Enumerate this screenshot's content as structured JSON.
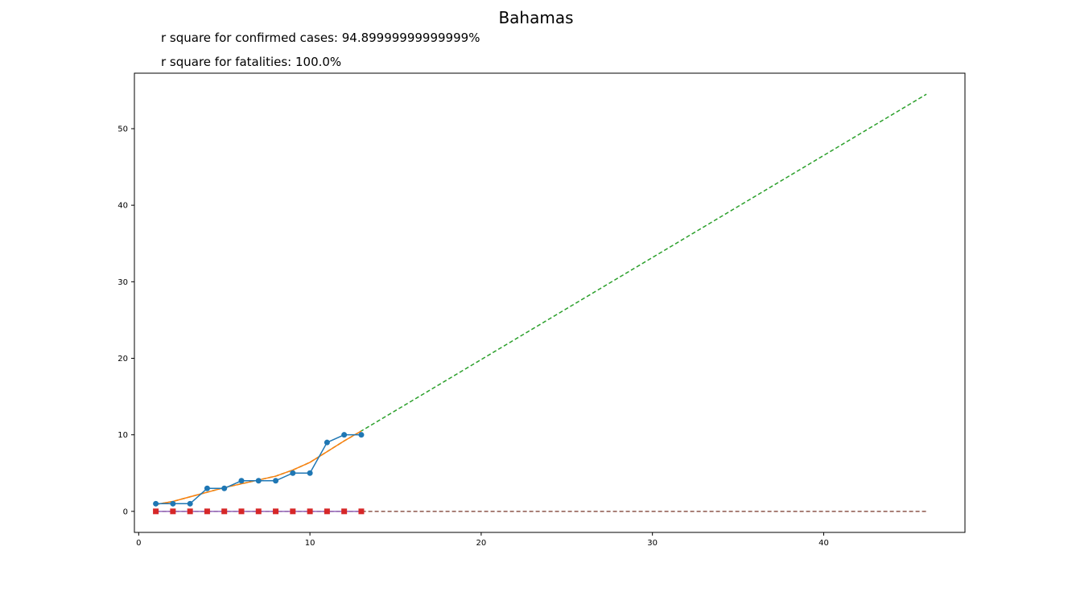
{
  "chart_data": {
    "type": "line",
    "title": "Bahamas",
    "annotations": [
      "r square for confirmed cases: 94.89999999999999%",
      "r square for fatalities: 100.0%"
    ],
    "xlabel": "",
    "ylabel": "",
    "xlim": [
      -0.25,
      48.25
    ],
    "ylim": [
      -2.75,
      57.25
    ],
    "xticks": [
      0,
      10,
      20,
      30,
      40
    ],
    "yticks": [
      0,
      10,
      20,
      30,
      40,
      50
    ],
    "grid": false,
    "legend": "none",
    "x": [
      1,
      2,
      3,
      4,
      5,
      6,
      7,
      8,
      9,
      10,
      11,
      12,
      13
    ],
    "series": [
      {
        "kind": "markers-line",
        "color": "#1f77b4",
        "values": [
          1,
          1,
          1,
          3,
          3,
          4,
          4,
          4,
          5,
          5,
          9,
          10,
          10
        ]
      },
      {
        "kind": "fit-line",
        "color": "#ff7f0e",
        "values": [
          0.9,
          1.3,
          1.9,
          2.5,
          3.1,
          3.6,
          4.1,
          4.6,
          5.4,
          6.4,
          7.8,
          9.2,
          10.5
        ]
      },
      {
        "kind": "projection-dashed",
        "color": "#2ca02c",
        "x": [
          1,
          2,
          3,
          4,
          5,
          6,
          7,
          8,
          9,
          10,
          11,
          12,
          13,
          46
        ],
        "values": [
          0.9,
          1.3,
          1.9,
          2.5,
          3.1,
          3.6,
          4.1,
          4.6,
          5.4,
          6.4,
          7.8,
          9.2,
          10.5,
          54.5
        ]
      },
      {
        "kind": "square-markers",
        "color": "#d62728",
        "values": [
          0,
          0,
          0,
          0,
          0,
          0,
          0,
          0,
          0,
          0,
          0,
          0,
          0
        ]
      },
      {
        "kind": "fit-line",
        "color": "#9467bd",
        "values": [
          0,
          0,
          0,
          0,
          0,
          0,
          0,
          0,
          0,
          0,
          0,
          0,
          0
        ]
      },
      {
        "kind": "projection-dashed",
        "color": "#8c564b",
        "x": [
          1,
          46
        ],
        "values": [
          0,
          0
        ]
      }
    ]
  }
}
